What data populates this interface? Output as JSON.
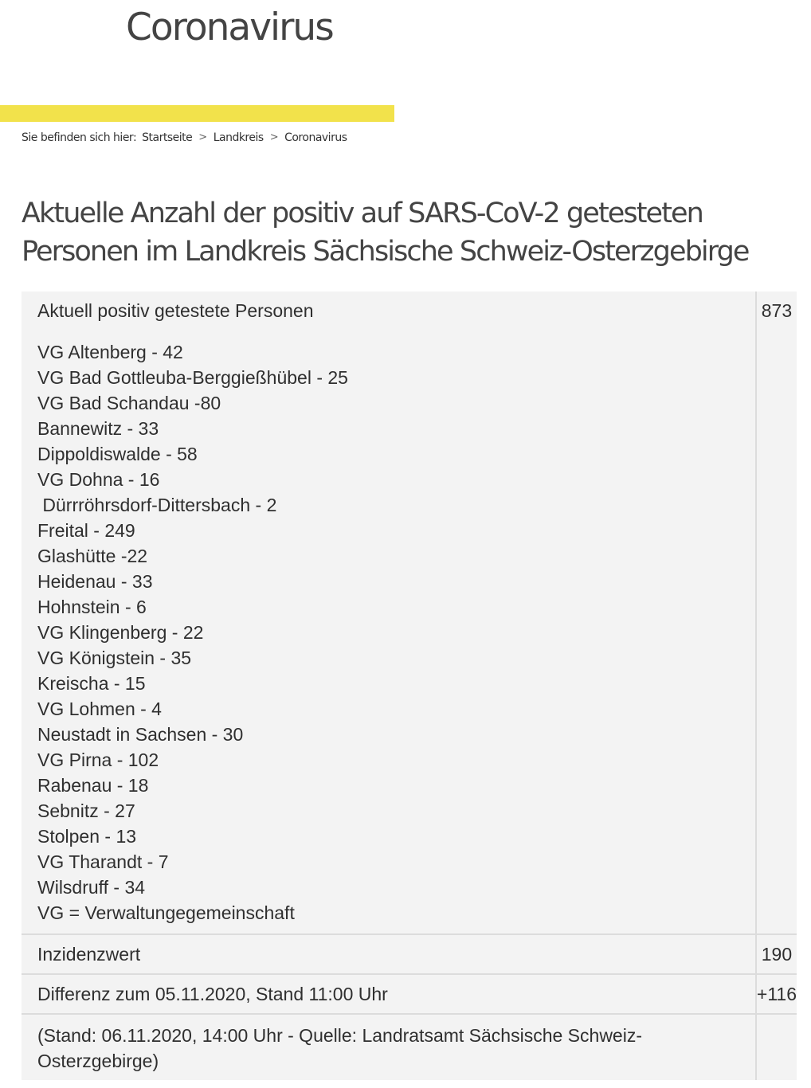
{
  "header": {
    "site_title": "Coronavirus"
  },
  "breadcrumb": {
    "prefix": "Sie befinden sich hier:",
    "items": [
      "Startseite",
      "Landkreis",
      "Coronavirus"
    ],
    "separator": ">"
  },
  "page_heading": "Aktuelle Anzahl der positiv auf SARS-CoV-2 getesteten Personen im Landkreis Sächsische Schweiz-Osterzgebirge",
  "colors": {
    "accent": "#f2e24b",
    "table_bg": "#f3f3f3"
  },
  "table": {
    "current_positive": {
      "label": "Aktuell positiv getestete Personen",
      "value": "873",
      "breakdown": [
        "VG Altenberg - 42",
        "VG Bad Gottleuba-Berggießhübel - 25",
        "VG Bad Schandau -80",
        "Bannewitz - 33",
        "Dippoldiswalde - 58",
        "VG Dohna - 16",
        " Dürrröhrsdorf-Dittersbach - 2",
        "Freital - 249",
        "Glashütte -22",
        "Heidenau - 33",
        "Hohnstein - 6",
        "VG Klingenberg - 22",
        "VG Königstein - 35",
        "Kreischa - 15",
        "VG Lohmen - 4",
        "Neustadt in Sachsen - 30",
        "VG Pirna - 102",
        "Rabenau - 18",
        "Sebnitz - 27",
        "Stolpen - 13",
        "VG Tharandt - 7",
        "Wilsdruff - 34",
        "VG = Verwaltungegemeinschaft"
      ]
    },
    "incidence": {
      "label": "Inzidenzwert",
      "value": "190"
    },
    "difference": {
      "label": "Differenz zum 05.11.2020, Stand 11:00 Uhr",
      "value": "+116"
    },
    "source": {
      "label": "(Stand: 06.11.2020, 14:00 Uhr - Quelle: Landratsamt Sächsische Schweiz-Osterzgebirge)",
      "value": ""
    }
  }
}
